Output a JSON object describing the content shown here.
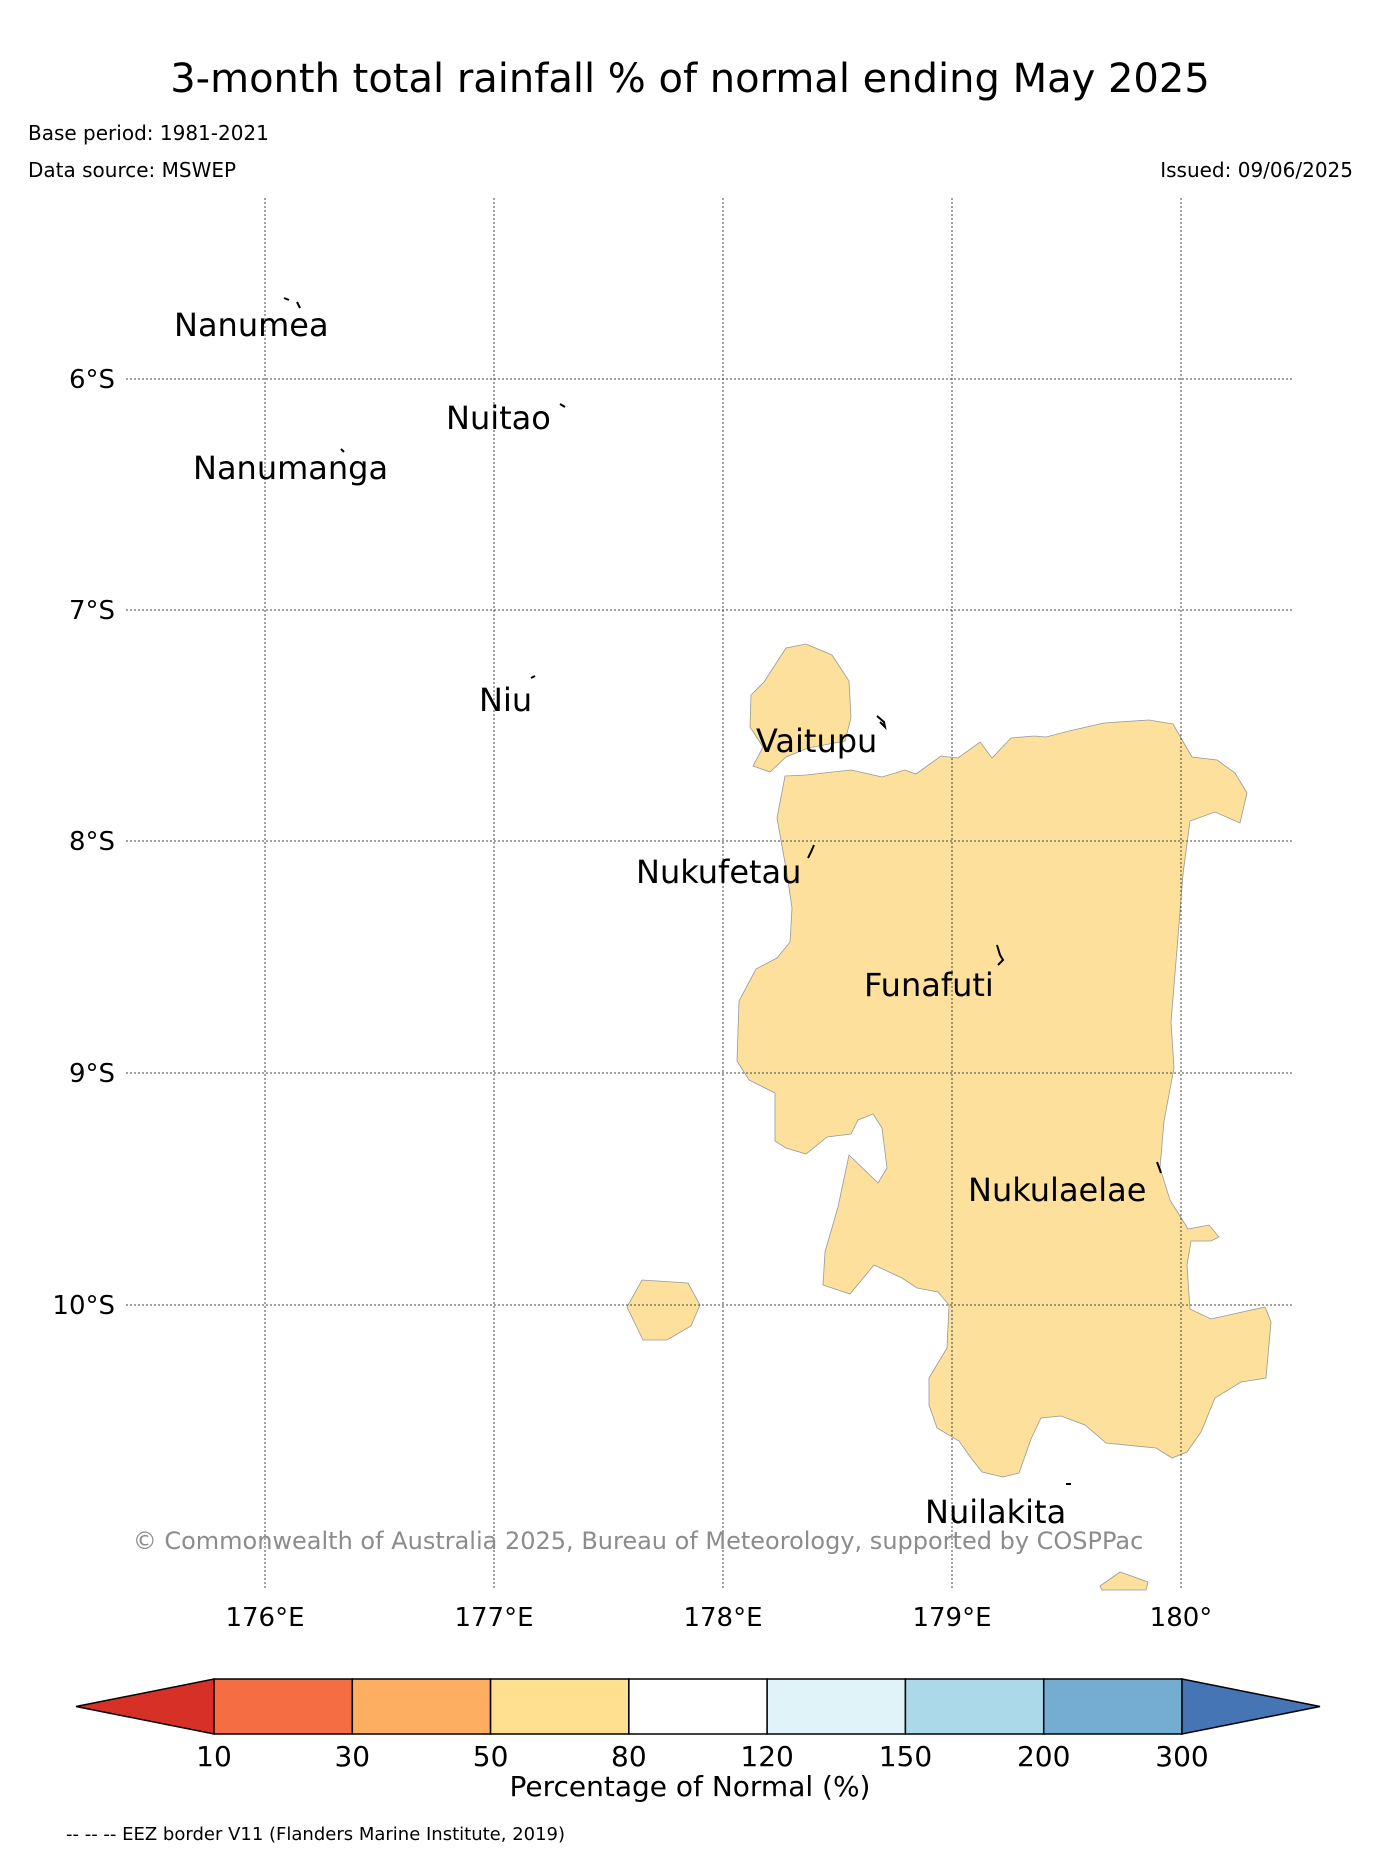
{
  "title": "3-month total rainfall % of normal ending May 2025",
  "base_period": "Base period: 1981-2021",
  "data_source": "Data source: MSWEP",
  "issued": "Issued: 09/06/2025",
  "copyright": "© Commonwealth of Australia 2025, Bureau of Meteorology, supported by COSPPac",
  "footnote": "-- -- -- EEZ border V11 (Flanders Marine Institute, 2019)",
  "map": {
    "longitude_ticks": [
      {
        "value": 176,
        "label": "176°E"
      },
      {
        "value": 177,
        "label": "177°E"
      },
      {
        "value": 178,
        "label": "178°E"
      },
      {
        "value": 179,
        "label": "179°E"
      },
      {
        "value": 180,
        "label": "180°"
      }
    ],
    "latitude_ticks": [
      {
        "value": -6,
        "label": "6°S"
      },
      {
        "value": -7,
        "label": "7°S"
      },
      {
        "value": -8,
        "label": "8°S"
      },
      {
        "value": -9,
        "label": "9°S"
      },
      {
        "value": -10,
        "label": "10°S"
      }
    ],
    "lon_range": [
      175.6,
      180.5
    ],
    "lat_range": [
      -11.2,
      -5.2
    ],
    "gridlines": true,
    "islands": [
      {
        "name": "Nanumea",
        "lon": 176.13,
        "lat": -5.68
      },
      {
        "name": "Nuitao",
        "lon": 177.32,
        "lat": -6.11
      },
      {
        "name": "Nanumanga",
        "lon": 176.32,
        "lat": -6.29
      },
      {
        "name": "Niu",
        "lon": 177.34,
        "lat": -7.24
      },
      {
        "name": "Vaitupu",
        "lon": 178.68,
        "lat": -7.48
      },
      {
        "name": "Nukufetau",
        "lon": 178.37,
        "lat": -8.03
      },
      {
        "name": "Funafuti",
        "lon": 179.2,
        "lat": -8.52
      },
      {
        "name": "Nukulaelae",
        "lon": 179.83,
        "lat": -9.38
      },
      {
        "name": "Nuilakita",
        "lon": 179.48,
        "lat": -10.75
      }
    ],
    "shaded_category": "50-80",
    "shaded_color": "#fde09b"
  },
  "colorbar": {
    "title": "Percentage of Normal (%)",
    "boundaries": [
      "10",
      "30",
      "50",
      "80",
      "120",
      "150",
      "200",
      "300"
    ],
    "colors": [
      "#d73027",
      "#f46d43",
      "#fdae61",
      "#fee090",
      "#ffffff",
      "#e0f3f8",
      "#abd9e9",
      "#74add1",
      "#4575b4"
    ],
    "extend": "both"
  }
}
